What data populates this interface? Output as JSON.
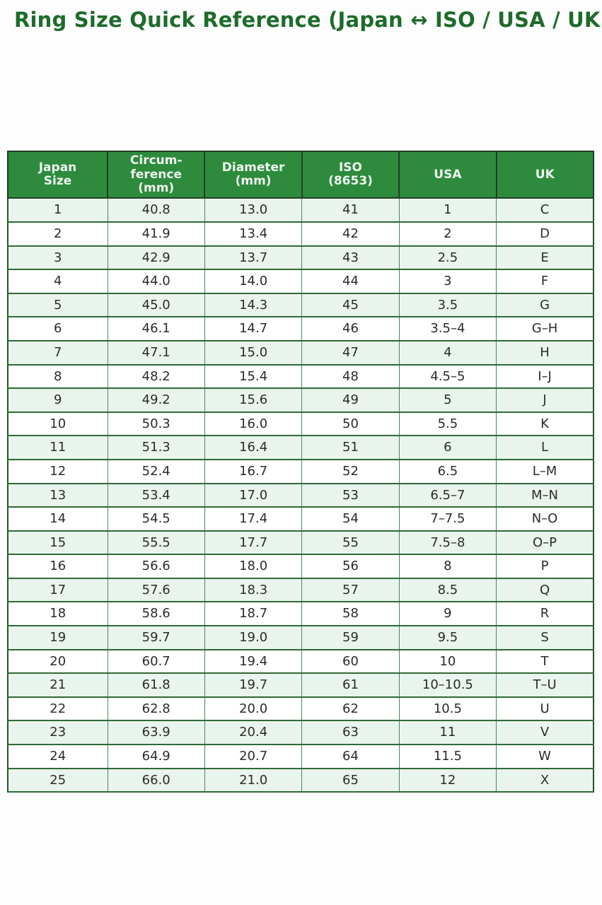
{
  "page": {
    "title": "Ring Size Quick Reference (Japan ↔ ISO / USA / UK)"
  },
  "colors": {
    "title_green": "#1e6b2b",
    "header_bg_green": "#2e8b3e",
    "header_text": "#f0f6ef",
    "row_alt_bg": "#e9f4ec",
    "row_bg": "#ffffff",
    "border_green": "#2e6a38",
    "cell_text": "#2b2b2b"
  },
  "table": {
    "column_keys": [
      "japan-size",
      "circumference-mm",
      "diameter-mm",
      "iso-8653",
      "usa",
      "uk"
    ],
    "columns": [
      "Japan\nSize",
      "Circum-\nference\n(mm)",
      "Diameter\n(mm)",
      "ISO\n(8653)",
      "USA",
      "UK"
    ],
    "rows": [
      [
        "1",
        "40.8",
        "13.0",
        "41",
        "1",
        "C"
      ],
      [
        "2",
        "41.9",
        "13.4",
        "42",
        "2",
        "D"
      ],
      [
        "3",
        "42.9",
        "13.7",
        "43",
        "2.5",
        "E"
      ],
      [
        "4",
        "44.0",
        "14.0",
        "44",
        "3",
        "F"
      ],
      [
        "5",
        "45.0",
        "14.3",
        "45",
        "3.5",
        "G"
      ],
      [
        "6",
        "46.1",
        "14.7",
        "46",
        "3.5–4",
        "G–H"
      ],
      [
        "7",
        "47.1",
        "15.0",
        "47",
        "4",
        "H"
      ],
      [
        "8",
        "48.2",
        "15.4",
        "48",
        "4.5–5",
        "I–J"
      ],
      [
        "9",
        "49.2",
        "15.6",
        "49",
        "5",
        "J"
      ],
      [
        "10",
        "50.3",
        "16.0",
        "50",
        "5.5",
        "K"
      ],
      [
        "11",
        "51.3",
        "16.4",
        "51",
        "6",
        "L"
      ],
      [
        "12",
        "52.4",
        "16.7",
        "52",
        "6.5",
        "L–M"
      ],
      [
        "13",
        "53.4",
        "17.0",
        "53",
        "6.5–7",
        "M–N"
      ],
      [
        "14",
        "54.5",
        "17.4",
        "54",
        "7–7.5",
        "N–O"
      ],
      [
        "15",
        "55.5",
        "17.7",
        "55",
        "7.5–8",
        "O–P"
      ],
      [
        "16",
        "56.6",
        "18.0",
        "56",
        "8",
        "P"
      ],
      [
        "17",
        "57.6",
        "18.3",
        "57",
        "8.5",
        "Q"
      ],
      [
        "18",
        "58.6",
        "18.7",
        "58",
        "9",
        "R"
      ],
      [
        "19",
        "59.7",
        "19.0",
        "59",
        "9.5",
        "S"
      ],
      [
        "20",
        "60.7",
        "19.4",
        "60",
        "10",
        "T"
      ],
      [
        "21",
        "61.8",
        "19.7",
        "61",
        "10–10.5",
        "T–U"
      ],
      [
        "22",
        "62.8",
        "20.0",
        "62",
        "10.5",
        "U"
      ],
      [
        "23",
        "63.9",
        "20.4",
        "63",
        "11",
        "V"
      ],
      [
        "24",
        "64.9",
        "20.7",
        "64",
        "11.5",
        "W"
      ],
      [
        "25",
        "66.0",
        "21.0",
        "65",
        "12",
        "X"
      ]
    ]
  }
}
